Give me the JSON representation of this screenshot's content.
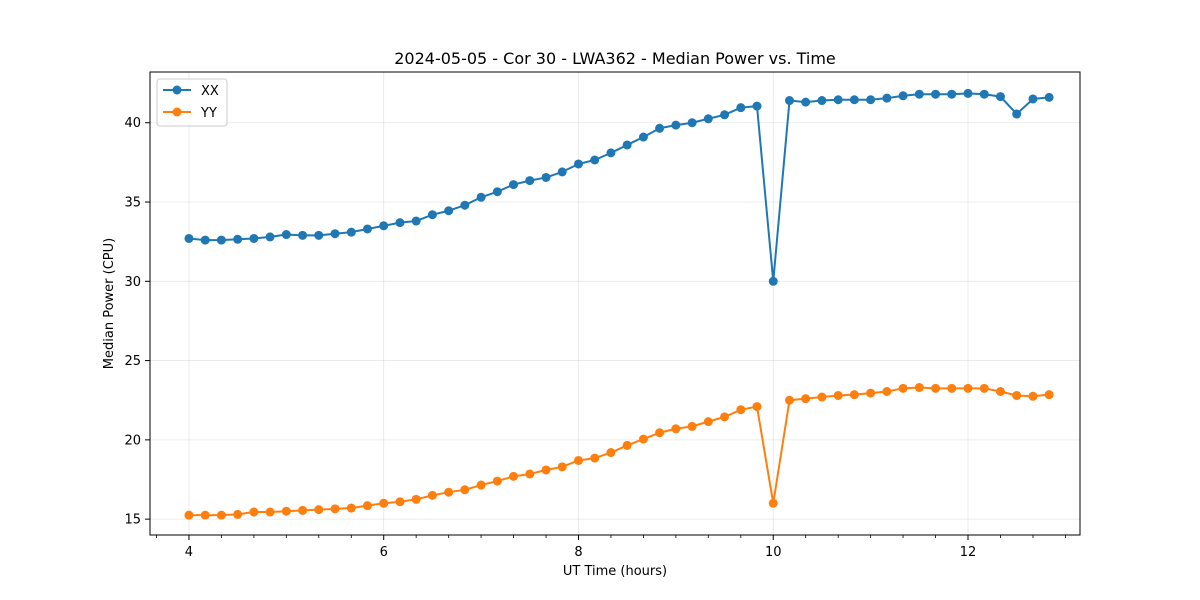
{
  "chart_data": {
    "type": "line",
    "title": "2024-05-05 - Cor 30 - LWA362 - Median Power vs. Time",
    "xlabel": "UT Time (hours)",
    "ylabel": "Median Power (CPU)",
    "xlim": [
      3.6,
      13.15
    ],
    "ylim": [
      14.0,
      43.2
    ],
    "xticks": [
      4,
      6,
      8,
      10,
      12
    ],
    "xtick_labels": [
      "4",
      "6",
      "8",
      "10",
      "12"
    ],
    "xminor_ticks": [
      3.667,
      4.333,
      4.667,
      5.0,
      5.333,
      5.667,
      6.333,
      6.667,
      7.0,
      7.333,
      7.667,
      8.333,
      8.667,
      9.0,
      9.333,
      9.667,
      10.333,
      10.667,
      11.0,
      11.333,
      11.667,
      12.333,
      12.667,
      13.0
    ],
    "yticks": [
      15,
      20,
      25,
      30,
      35,
      40
    ],
    "ytick_labels": [
      "15",
      "20",
      "25",
      "30",
      "35",
      "40"
    ],
    "grid": true,
    "legend_position": "top-left",
    "series": [
      {
        "name": "XX",
        "color": "#1f77b4",
        "x": [
          4.0,
          4.167,
          4.333,
          4.5,
          4.667,
          4.833,
          5.0,
          5.167,
          5.333,
          5.5,
          5.667,
          5.833,
          6.0,
          6.167,
          6.333,
          6.5,
          6.667,
          6.833,
          7.0,
          7.167,
          7.333,
          7.5,
          7.667,
          7.833,
          8.0,
          8.167,
          8.333,
          8.5,
          8.667,
          8.833,
          9.0,
          9.167,
          9.333,
          9.5,
          9.667,
          9.833,
          10.0,
          10.167,
          10.333,
          10.5,
          10.667,
          10.833,
          11.0,
          11.167,
          11.333,
          11.5,
          11.667,
          11.833,
          12.0,
          12.167,
          12.333,
          12.5,
          12.667,
          12.833
        ],
        "values": [
          32.7,
          32.6,
          32.6,
          32.65,
          32.7,
          32.8,
          32.95,
          32.9,
          32.9,
          33.0,
          33.1,
          33.3,
          33.5,
          33.7,
          33.8,
          34.2,
          34.45,
          34.8,
          35.3,
          35.65,
          36.1,
          36.35,
          36.55,
          36.9,
          37.4,
          37.65,
          38.1,
          38.6,
          39.1,
          39.65,
          39.85,
          40.0,
          40.25,
          40.5,
          40.95,
          41.05,
          30.0,
          41.4,
          41.3,
          41.4,
          41.45,
          41.45,
          41.45,
          41.55,
          41.7,
          41.8,
          41.8,
          41.8,
          41.85,
          41.8,
          41.65,
          40.55,
          41.5,
          41.6
        ]
      },
      {
        "name": "YY",
        "color": "#ff7f0e",
        "x": [
          4.0,
          4.167,
          4.333,
          4.5,
          4.667,
          4.833,
          5.0,
          5.167,
          5.333,
          5.5,
          5.667,
          5.833,
          6.0,
          6.167,
          6.333,
          6.5,
          6.667,
          6.833,
          7.0,
          7.167,
          7.333,
          7.5,
          7.667,
          7.833,
          8.0,
          8.167,
          8.333,
          8.5,
          8.667,
          8.833,
          9.0,
          9.167,
          9.333,
          9.5,
          9.667,
          9.833,
          10.0,
          10.167,
          10.333,
          10.5,
          10.667,
          10.833,
          11.0,
          11.167,
          11.333,
          11.5,
          11.667,
          11.833,
          12.0,
          12.167,
          12.333,
          12.5,
          12.667,
          12.833
        ],
        "values": [
          15.25,
          15.25,
          15.25,
          15.3,
          15.45,
          15.45,
          15.5,
          15.55,
          15.6,
          15.65,
          15.7,
          15.85,
          16.0,
          16.1,
          16.25,
          16.5,
          16.7,
          16.85,
          17.15,
          17.4,
          17.7,
          17.85,
          18.1,
          18.3,
          18.7,
          18.85,
          19.2,
          19.65,
          20.05,
          20.45,
          20.7,
          20.85,
          21.15,
          21.45,
          21.9,
          22.1,
          16.0,
          22.5,
          22.6,
          22.7,
          22.8,
          22.85,
          22.95,
          23.05,
          23.25,
          23.3,
          23.25,
          23.25,
          23.25,
          23.25,
          23.05,
          22.8,
          22.75,
          22.85
        ]
      }
    ]
  }
}
